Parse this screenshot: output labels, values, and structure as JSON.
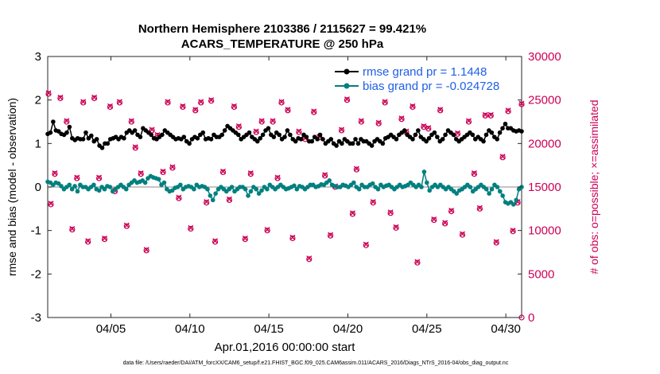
{
  "chart_data": {
    "type": "line",
    "title": "Northern Hemisphere 2103386 / 2115627 = 99.421%",
    "subtitle": "ACARS_TEMPERATURE @ 250 hPa",
    "xlabel": "Apr.01,2016 00:00:00 start",
    "ylabel": "rmse and bias (model - observation)",
    "y2label": "# of obs: o=possible; ×=assimilated",
    "footer": "data file: /Users/raeder/DAI/ATM_forcXX/CAM6_setup/f.e21.FHIST_BGC.f09_025.CAM6assim.011/ACARS_2016/Diags_NTrS_2016-04/obs_diag_output.nc",
    "ylim": [
      -3,
      3
    ],
    "y2lim": [
      0,
      30000
    ],
    "xlim": [
      1.0,
      31.0
    ],
    "yticks": [
      "3",
      "2",
      "1",
      "0",
      "-1",
      "-2",
      "-3"
    ],
    "y2ticks": [
      "30000",
      "25000",
      "20000",
      "15000",
      "10000",
      "5000",
      "0"
    ],
    "xticks": [
      {
        "label": "04/05",
        "x": 5
      },
      {
        "label": "04/10",
        "x": 10
      },
      {
        "label": "04/15",
        "x": 15
      },
      {
        "label": "04/20",
        "x": 20
      },
      {
        "label": "04/25",
        "x": 25
      },
      {
        "label": "04/30",
        "x": 30
      }
    ],
    "series": [
      {
        "name": "rmse grand pr = 1.1448",
        "color": "#000000",
        "values": [
          1.22,
          1.25,
          1.5,
          1.3,
          1.28,
          1.22,
          1.2,
          1.25,
          1.38,
          1.12,
          1.08,
          1.12,
          1.1,
          1.1,
          1.25,
          1.12,
          1.18,
          1.05,
          1.1,
          0.95,
          0.9,
          1.0,
          1.0,
          1.1,
          1.12,
          1.15,
          1.1,
          1.15,
          1.12,
          1.25,
          1.3,
          1.25,
          1.3,
          1.2,
          1.15,
          1.35,
          1.3,
          1.25,
          1.2,
          1.12,
          1.1,
          1.15,
          1.2,
          1.3,
          1.25,
          1.2,
          1.15,
          1.1,
          1.12,
          1.1,
          1.15,
          1.05,
          1.0,
          1.1,
          1.15,
          1.12,
          1.2,
          1.25,
          1.1,
          1.12,
          1.1,
          1.2,
          1.15,
          1.15,
          1.2,
          1.3,
          1.4,
          1.35,
          1.3,
          1.25,
          1.2,
          1.1,
          1.15,
          1.2,
          1.25,
          1.15,
          1.1,
          1.05,
          1.12,
          1.2,
          1.3,
          1.35,
          1.2,
          1.15,
          1.25,
          1.2,
          1.1,
          1.15,
          1.3,
          1.2,
          1.1,
          1.05,
          1.12,
          1.1,
          1.2,
          1.15,
          1.05,
          1.05,
          1.15,
          1.1,
          1.2,
          1.1,
          1.0,
          1.05,
          1.1,
          1.0,
          0.95,
          1.05,
          1.0,
          1.1,
          1.05,
          1.0,
          1.0,
          1.1,
          1.0,
          1.1,
          1.05,
          1.05,
          1.0,
          0.95,
          1.05,
          1.1,
          1.05,
          1.0,
          1.12,
          1.15,
          1.2,
          1.15,
          1.1,
          1.2,
          1.25,
          1.3,
          1.2,
          1.15,
          1.1,
          1.2,
          1.3,
          1.15,
          1.1,
          1.05,
          1.12,
          1.2,
          1.25,
          1.15,
          1.05,
          1.1,
          1.2,
          1.3,
          1.25,
          1.2,
          1.1,
          1.05,
          1.1,
          1.15,
          1.2,
          1.25,
          1.2,
          1.1,
          1.15,
          1.1,
          1.05,
          1.2,
          1.3,
          1.25,
          1.15,
          1.1,
          1.25,
          1.35,
          1.45,
          1.35,
          1.35,
          1.3,
          1.28,
          1.3,
          1.28
        ]
      },
      {
        "name": "bias grand pr = -0.024728",
        "color": "#00807f",
        "values": [
          0.12,
          0.1,
          0.05,
          0.1,
          0.08,
          0.02,
          -0.05,
          0.0,
          0.05,
          -0.05,
          0.02,
          -0.1,
          0.05,
          0.0,
          0.0,
          -0.05,
          0.0,
          0.05,
          -0.05,
          -0.08,
          0.0,
          -0.05,
          0.02,
          0.0,
          -0.1,
          -0.05,
          0.0,
          0.05,
          0.0,
          -0.05,
          0.05,
          0.1,
          0.15,
          0.1,
          0.12,
          0.15,
          0.1,
          0.2,
          0.25,
          0.22,
          0.2,
          0.18,
          0.05,
          0.1,
          -0.05,
          -0.1,
          -0.08,
          -0.02,
          0.0,
          0.05,
          -0.05,
          0.0,
          0.02,
          0.0,
          -0.05,
          0.05,
          0.0,
          0.02,
          0.0,
          -0.05,
          -0.2,
          -0.3,
          -0.15,
          -0.05,
          0.0,
          -0.05,
          -0.1,
          -0.05,
          0.0,
          -0.1,
          -0.05,
          0.0,
          0.0,
          -0.05,
          -0.2,
          -0.1,
          0.0,
          -0.05,
          -0.15,
          -0.08,
          0.0,
          -0.05,
          0.05,
          0.0,
          -0.05,
          0.0,
          0.05,
          0.0,
          -0.05,
          -0.03,
          0.0,
          0.03,
          -0.05,
          0.02,
          0.0,
          -0.05,
          0.0,
          0.05,
          0.05,
          0.0,
          0.02,
          0.06,
          0.05,
          0.1,
          0.15,
          0.05,
          0.02,
          0.0,
          0.0,
          0.05,
          0.03,
          0.0,
          0.05,
          0.1,
          0.0,
          -0.05,
          0.05,
          0.0,
          0.0,
          0.05,
          0.08,
          0.0,
          -0.05,
          0.05,
          0.0,
          0.03,
          0.05,
          0.0,
          -0.05,
          0.0,
          0.05,
          0.0,
          0.02,
          0.05,
          0.1,
          0.05,
          0.0,
          0.05,
          0.0,
          0.35,
          0.1,
          -0.08,
          0.0,
          0.05,
          0.0,
          0.05,
          0.0,
          -0.05,
          0.0,
          -0.05,
          -0.1,
          -0.15,
          -0.08,
          -0.05,
          0.0,
          0.05,
          0.0,
          -0.1,
          -0.05,
          0.0,
          0.05,
          0.0,
          -0.05,
          -0.15,
          -0.05,
          0.05,
          0.0,
          -0.1,
          -0.2,
          -0.35,
          -0.38,
          -0.35,
          -0.4,
          -0.3,
          -0.05,
          0.0
        ]
      }
    ],
    "obs_possible": [
      {
        "x": 1.05,
        "y": 25700
      },
      {
        "x": 1.2,
        "y": 13000
      },
      {
        "x": 1.45,
        "y": 16500
      },
      {
        "x": 1.8,
        "y": 25200
      },
      {
        "x": 2.2,
        "y": 22500
      },
      {
        "x": 2.55,
        "y": 10100
      },
      {
        "x": 2.85,
        "y": 16000
      },
      {
        "x": 3.25,
        "y": 24700
      },
      {
        "x": 3.55,
        "y": 8700
      },
      {
        "x": 3.95,
        "y": 25200
      },
      {
        "x": 4.25,
        "y": 16000
      },
      {
        "x": 4.6,
        "y": 9000
      },
      {
        "x": 4.95,
        "y": 24200
      },
      {
        "x": 5.25,
        "y": 14500
      },
      {
        "x": 5.55,
        "y": 24700
      },
      {
        "x": 6.0,
        "y": 10500
      },
      {
        "x": 6.3,
        "y": 22500
      },
      {
        "x": 6.55,
        "y": 19500
      },
      {
        "x": 6.9,
        "y": 16500
      },
      {
        "x": 7.25,
        "y": 7700
      },
      {
        "x": 7.6,
        "y": 21500
      },
      {
        "x": 7.95,
        "y": 20900
      },
      {
        "x": 8.3,
        "y": 16700
      },
      {
        "x": 8.6,
        "y": 24700
      },
      {
        "x": 8.9,
        "y": 17200
      },
      {
        "x": 9.3,
        "y": 13700
      },
      {
        "x": 9.55,
        "y": 24200
      },
      {
        "x": 10.05,
        "y": 10200
      },
      {
        "x": 10.35,
        "y": 23800
      },
      {
        "x": 10.7,
        "y": 24700
      },
      {
        "x": 11.05,
        "y": 13200
      },
      {
        "x": 11.35,
        "y": 24900
      },
      {
        "x": 11.6,
        "y": 8700
      },
      {
        "x": 12.1,
        "y": 16700
      },
      {
        "x": 12.5,
        "y": 13500
      },
      {
        "x": 12.8,
        "y": 24200
      },
      {
        "x": 13.1,
        "y": 21900
      },
      {
        "x": 13.5,
        "y": 9000
      },
      {
        "x": 13.85,
        "y": 16500
      },
      {
        "x": 14.2,
        "y": 21300
      },
      {
        "x": 14.55,
        "y": 22500
      },
      {
        "x": 14.9,
        "y": 10000
      },
      {
        "x": 15.25,
        "y": 22500
      },
      {
        "x": 15.55,
        "y": 16000
      },
      {
        "x": 15.8,
        "y": 24700
      },
      {
        "x": 16.2,
        "y": 23800
      },
      {
        "x": 16.5,
        "y": 9100
      },
      {
        "x": 16.9,
        "y": 21300
      },
      {
        "x": 17.3,
        "y": 20500
      },
      {
        "x": 17.55,
        "y": 6700
      },
      {
        "x": 17.85,
        "y": 23600
      },
      {
        "x": 18.2,
        "y": 20700
      },
      {
        "x": 18.55,
        "y": 16300
      },
      {
        "x": 18.9,
        "y": 9400
      },
      {
        "x": 19.2,
        "y": 15000
      },
      {
        "x": 19.6,
        "y": 21500
      },
      {
        "x": 19.95,
        "y": 25000
      },
      {
        "x": 20.3,
        "y": 11900
      },
      {
        "x": 20.55,
        "y": 17000
      },
      {
        "x": 20.85,
        "y": 22500
      },
      {
        "x": 21.15,
        "y": 8300
      },
      {
        "x": 21.6,
        "y": 13200
      },
      {
        "x": 21.95,
        "y": 22300
      },
      {
        "x": 22.35,
        "y": 24700
      },
      {
        "x": 22.7,
        "y": 12000
      },
      {
        "x": 23.05,
        "y": 10300
      },
      {
        "x": 23.4,
        "y": 22800
      },
      {
        "x": 23.7,
        "y": 21300
      },
      {
        "x": 24.1,
        "y": 24200
      },
      {
        "x": 24.4,
        "y": 6300
      },
      {
        "x": 24.8,
        "y": 21900
      },
      {
        "x": 25.1,
        "y": 21700
      },
      {
        "x": 25.45,
        "y": 11200
      },
      {
        "x": 25.85,
        "y": 23800
      },
      {
        "x": 26.15,
        "y": 10800
      },
      {
        "x": 26.55,
        "y": 12200
      },
      {
        "x": 26.95,
        "y": 21100
      },
      {
        "x": 27.25,
        "y": 9500
      },
      {
        "x": 27.65,
        "y": 22500
      },
      {
        "x": 28.0,
        "y": 16500
      },
      {
        "x": 28.35,
        "y": 12500
      },
      {
        "x": 28.7,
        "y": 23200
      },
      {
        "x": 29.05,
        "y": 23200
      },
      {
        "x": 29.4,
        "y": 8600
      },
      {
        "x": 29.8,
        "y": 18400
      },
      {
        "x": 30.15,
        "y": 23700
      },
      {
        "x": 30.45,
        "y": 9900
      },
      {
        "x": 30.75,
        "y": 13200
      },
      {
        "x": 31.0,
        "y": 24500
      },
      {
        "x": 31.0,
        "y": 0
      }
    ],
    "obs_assimilated": [
      {
        "x": 1.05,
        "y": 25800
      },
      {
        "x": 1.2,
        "y": 13100
      },
      {
        "x": 1.45,
        "y": 16600
      },
      {
        "x": 1.8,
        "y": 25300
      },
      {
        "x": 2.2,
        "y": 22600
      },
      {
        "x": 2.55,
        "y": 10200
      },
      {
        "x": 2.85,
        "y": 16100
      },
      {
        "x": 3.25,
        "y": 24800
      },
      {
        "x": 3.55,
        "y": 8800
      },
      {
        "x": 3.95,
        "y": 25300
      },
      {
        "x": 4.25,
        "y": 16100
      },
      {
        "x": 4.6,
        "y": 9100
      },
      {
        "x": 4.95,
        "y": 24300
      },
      {
        "x": 5.25,
        "y": 14600
      },
      {
        "x": 5.55,
        "y": 24800
      },
      {
        "x": 6.0,
        "y": 10600
      },
      {
        "x": 6.3,
        "y": 22600
      },
      {
        "x": 6.55,
        "y": 19600
      },
      {
        "x": 6.9,
        "y": 16600
      },
      {
        "x": 7.25,
        "y": 7800
      },
      {
        "x": 7.6,
        "y": 21600
      },
      {
        "x": 7.95,
        "y": 21000
      },
      {
        "x": 8.3,
        "y": 16800
      },
      {
        "x": 8.6,
        "y": 24800
      },
      {
        "x": 8.9,
        "y": 17300
      },
      {
        "x": 9.3,
        "y": 13800
      },
      {
        "x": 9.55,
        "y": 24300
      },
      {
        "x": 10.05,
        "y": 10300
      },
      {
        "x": 10.35,
        "y": 23900
      },
      {
        "x": 10.7,
        "y": 24800
      },
      {
        "x": 11.05,
        "y": 13300
      },
      {
        "x": 11.35,
        "y": 25000
      },
      {
        "x": 11.6,
        "y": 8800
      },
      {
        "x": 12.1,
        "y": 16800
      },
      {
        "x": 12.5,
        "y": 13600
      },
      {
        "x": 12.8,
        "y": 24300
      },
      {
        "x": 13.1,
        "y": 22000
      },
      {
        "x": 13.5,
        "y": 9100
      },
      {
        "x": 13.85,
        "y": 16600
      },
      {
        "x": 14.2,
        "y": 21400
      },
      {
        "x": 14.55,
        "y": 22600
      },
      {
        "x": 14.9,
        "y": 10100
      },
      {
        "x": 15.25,
        "y": 22600
      },
      {
        "x": 15.55,
        "y": 16100
      },
      {
        "x": 15.8,
        "y": 24800
      },
      {
        "x": 16.2,
        "y": 23900
      },
      {
        "x": 16.5,
        "y": 9200
      },
      {
        "x": 16.9,
        "y": 21400
      },
      {
        "x": 17.3,
        "y": 20600
      },
      {
        "x": 17.55,
        "y": 6800
      },
      {
        "x": 17.85,
        "y": 23700
      },
      {
        "x": 18.2,
        "y": 20800
      },
      {
        "x": 18.55,
        "y": 16400
      },
      {
        "x": 18.9,
        "y": 9500
      },
      {
        "x": 19.2,
        "y": 15100
      },
      {
        "x": 19.6,
        "y": 21600
      },
      {
        "x": 19.95,
        "y": 25100
      },
      {
        "x": 20.3,
        "y": 12000
      },
      {
        "x": 20.55,
        "y": 17100
      },
      {
        "x": 20.85,
        "y": 22600
      },
      {
        "x": 21.15,
        "y": 8400
      },
      {
        "x": 21.6,
        "y": 13300
      },
      {
        "x": 21.95,
        "y": 22400
      },
      {
        "x": 22.35,
        "y": 24800
      },
      {
        "x": 22.7,
        "y": 12100
      },
      {
        "x": 23.05,
        "y": 10400
      },
      {
        "x": 23.4,
        "y": 22900
      },
      {
        "x": 23.7,
        "y": 21400
      },
      {
        "x": 24.1,
        "y": 24300
      },
      {
        "x": 24.4,
        "y": 6400
      },
      {
        "x": 24.8,
        "y": 22000
      },
      {
        "x": 25.1,
        "y": 21800
      },
      {
        "x": 25.45,
        "y": 11300
      },
      {
        "x": 25.85,
        "y": 23900
      },
      {
        "x": 26.15,
        "y": 10900
      },
      {
        "x": 26.55,
        "y": 12300
      },
      {
        "x": 26.95,
        "y": 21200
      },
      {
        "x": 27.25,
        "y": 9600
      },
      {
        "x": 27.65,
        "y": 22600
      },
      {
        "x": 28.0,
        "y": 16600
      },
      {
        "x": 28.35,
        "y": 12600
      },
      {
        "x": 28.7,
        "y": 23300
      },
      {
        "x": 29.05,
        "y": 23300
      },
      {
        "x": 29.4,
        "y": 8700
      },
      {
        "x": 29.8,
        "y": 18500
      },
      {
        "x": 30.15,
        "y": 23800
      },
      {
        "x": 30.45,
        "y": 10000
      },
      {
        "x": 30.75,
        "y": 13300
      },
      {
        "x": 31.0,
        "y": 24600
      }
    ],
    "colors": {
      "obs": "#cc0055",
      "zero_line": "#b0b0b0",
      "legend_text": "#1f5fe6"
    },
    "legend_position": "top-right"
  }
}
